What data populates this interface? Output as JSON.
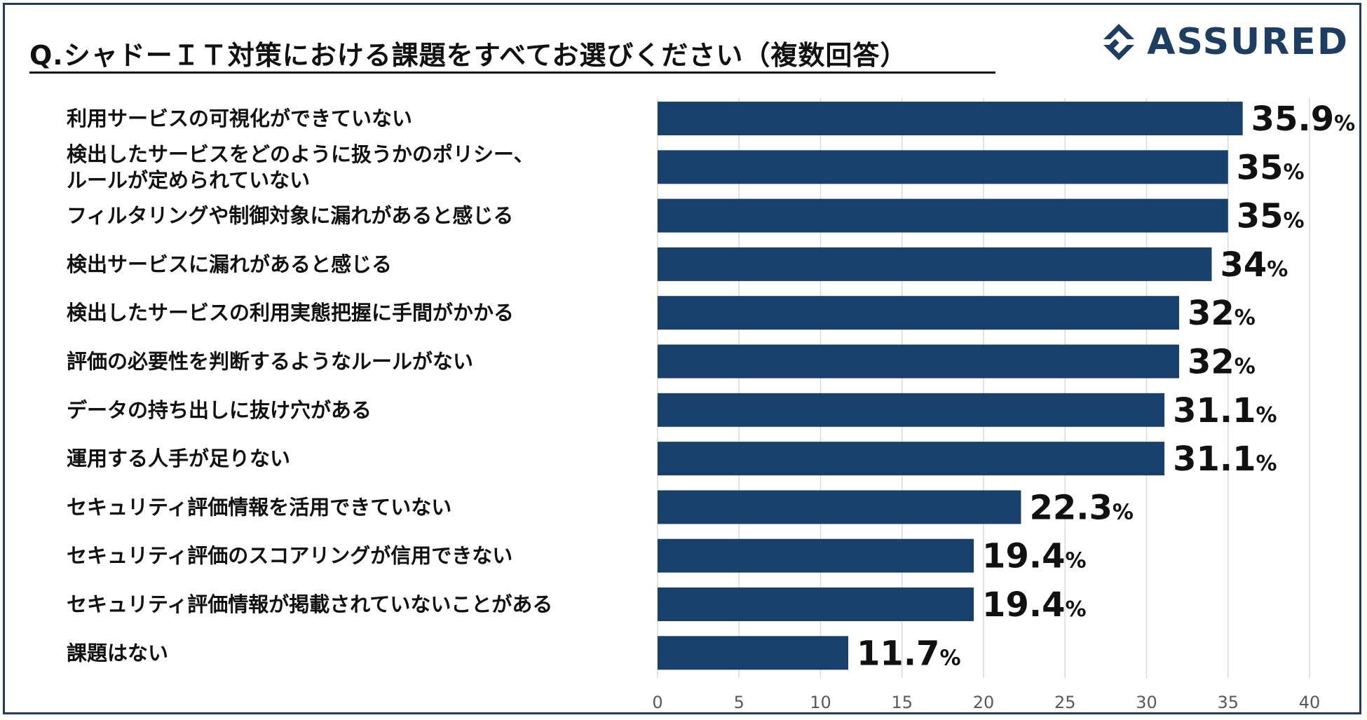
{
  "title": "Q.シャドーＩＴ対策における課題をすべてお選びください（複数回答）",
  "logo": {
    "text": "ASSURED"
  },
  "colors": {
    "bar": "#17406d",
    "grid": "#d9d9d9",
    "frame": "#1d3e62",
    "text": "#111111",
    "axis_text": "#595959"
  },
  "chart_data": {
    "type": "bar",
    "orientation": "horizontal",
    "categories": [
      "利用サービスの可視化ができていない",
      "検出したサービスをどのように扱うかのポリシー、\nルールが定められていない",
      "フィルタリングや制御対象に漏れがあると感じる",
      "検出サービスに漏れがあると感じる",
      "検出したサービスの利用実態把握に手間がかかる",
      "評価の必要性を判断するようなルールがない",
      "データの持ち出しに抜け穴がある",
      "運用する人手が足りない",
      "セキュリティ評価情報を活用できていない",
      "セキュリティ評価のスコアリングが信用できない",
      "セキュリティ評価情報が掲載されていないことがある",
      "課題はない"
    ],
    "values": [
      35.9,
      35,
      35,
      34,
      32,
      32,
      31.1,
      31.1,
      22.3,
      19.4,
      19.4,
      11.7
    ],
    "value_labels": [
      "35.9",
      "35",
      "35",
      "34",
      "32",
      "32",
      "31.1",
      "31.1",
      "22.3",
      "19.4",
      "19.4",
      "11.7"
    ],
    "unit": "%",
    "xlim": [
      0,
      40
    ],
    "xticks": [
      "0",
      "5",
      "10",
      "15",
      "20",
      "25",
      "30",
      "35",
      "40"
    ],
    "grid": true
  }
}
